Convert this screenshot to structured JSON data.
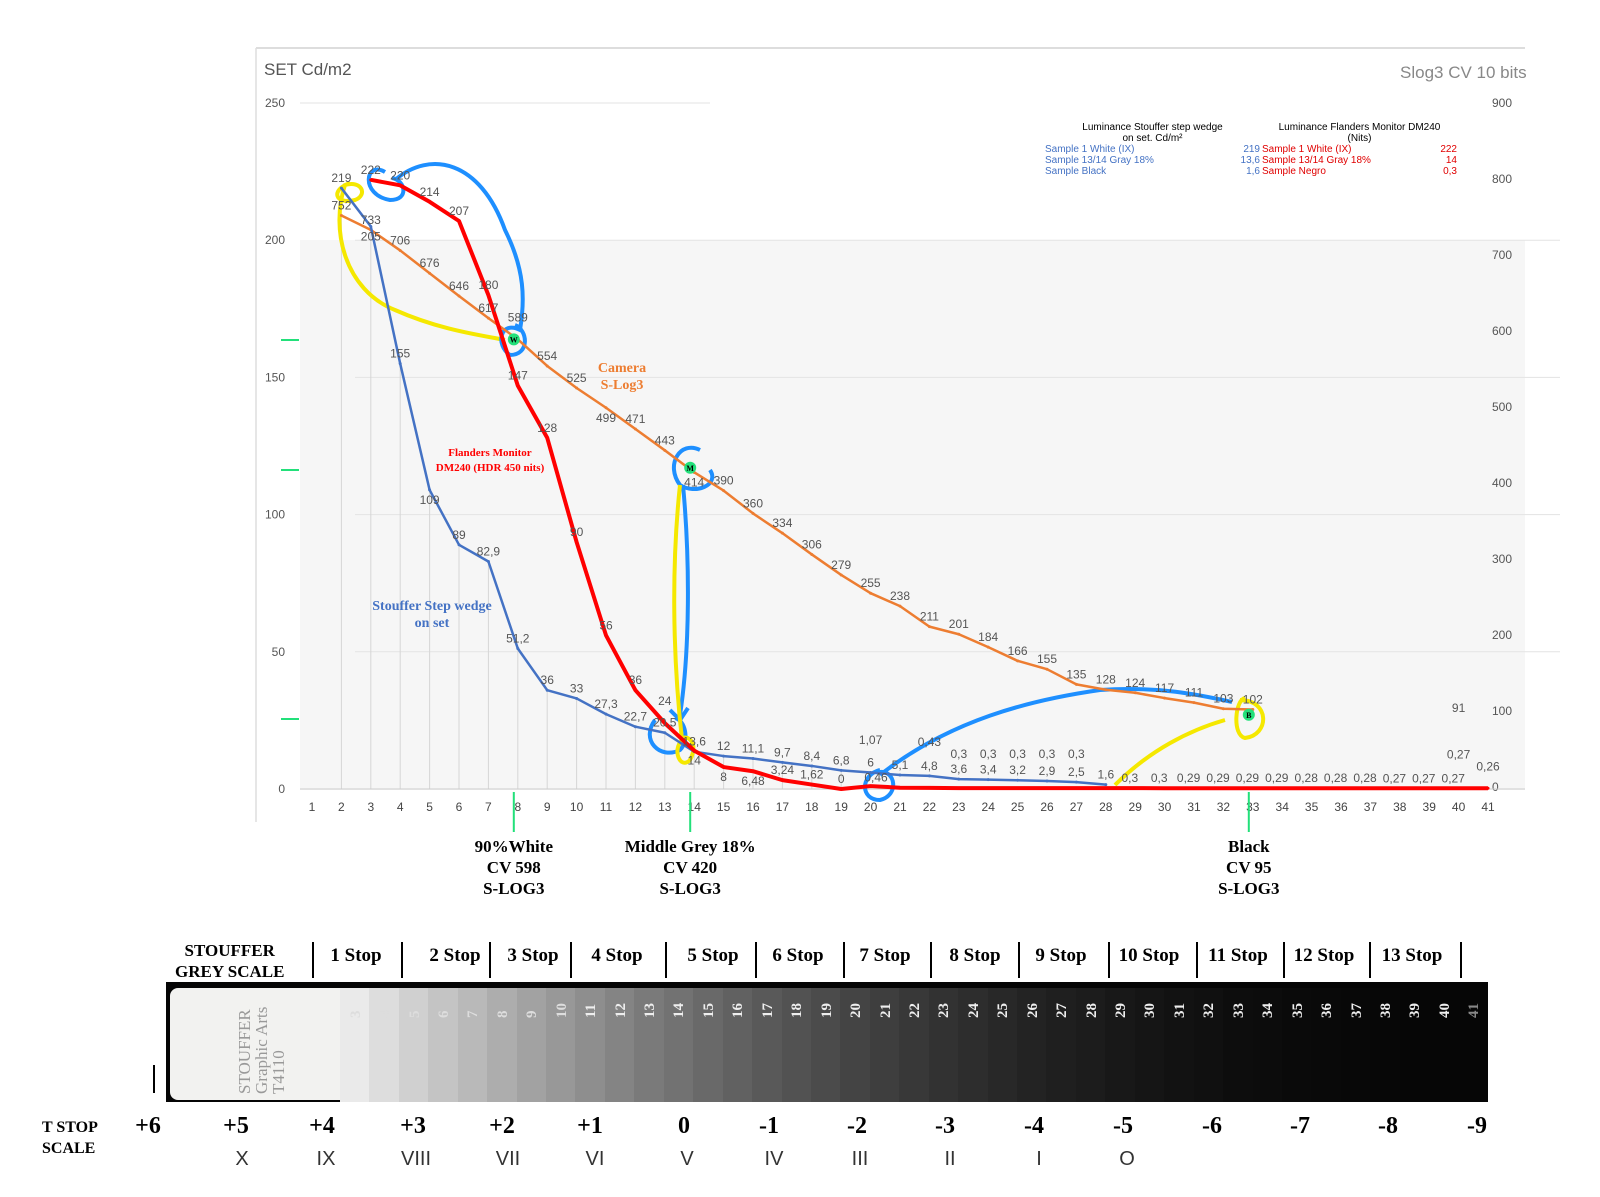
{
  "chart_data": {
    "type": "line",
    "left_axis_title": "SET Cd/m2",
    "right_axis_title": "Slog3 CV 10 bits",
    "left_ylim": [
      0,
      250
    ],
    "left_ticks": [
      0,
      50,
      100,
      150,
      200,
      250
    ],
    "right_ylim": [
      0,
      900
    ],
    "right_ticks": [
      0,
      100,
      200,
      300,
      400,
      500,
      600,
      700,
      800,
      900
    ],
    "xlim": [
      1,
      41
    ],
    "x_ticks": [
      1,
      2,
      3,
      4,
      5,
      6,
      7,
      8,
      9,
      10,
      11,
      12,
      13,
      14,
      15,
      16,
      17,
      18,
      19,
      20,
      21,
      22,
      23,
      24,
      25,
      26,
      27,
      28,
      29,
      30,
      31,
      32,
      33,
      34,
      35,
      36,
      37,
      38,
      39,
      40,
      41
    ],
    "grid": "horizontal",
    "series": [
      {
        "name": "Stouffer Step wedge on set",
        "axis": "left",
        "color": "#4472c4",
        "x_start": 2,
        "values": [
          219,
          205,
          155,
          109,
          89,
          82.9,
          51.2,
          36,
          33,
          27.3,
          22.7,
          20.5,
          13.6,
          12,
          11.1,
          9.7,
          8.4,
          6.8,
          6,
          5.1,
          4.8,
          3.6,
          3.4,
          3.2,
          2.9,
          2.5,
          1.6
        ]
      },
      {
        "name": "Flanders Monitor DM240 (HDR 450 nits)",
        "axis": "left",
        "color": "#ff0000",
        "x_start": 3,
        "values": [
          222,
          220,
          214,
          207,
          180,
          147,
          128,
          90,
          56,
          36,
          24,
          14,
          8,
          6.48,
          3.24,
          1.62,
          0,
          1.07,
          0.46,
          0.43,
          0.3,
          0.3,
          0.3,
          0.3,
          0.3,
          0.3,
          0.3,
          0.29,
          0.29,
          0.29,
          0.29,
          0.28,
          0.28,
          0.28,
          0.27,
          0.27,
          0.27,
          0.27,
          0.26
        ]
      },
      {
        "name": "Camera S-Log3",
        "axis": "right",
        "color": "#ed7d31",
        "x_start": 2,
        "values": [
          752,
          733,
          706,
          676,
          646,
          617,
          589,
          554,
          525,
          499,
          471,
          443,
          414,
          390,
          360,
          334,
          306,
          279,
          255,
          238,
          211,
          201,
          184,
          166,
          155,
          135,
          128,
          124,
          117,
          111,
          103,
          102
        ]
      }
    ],
    "extra_point": {
      "x": 40,
      "value": 91,
      "axis": "right"
    },
    "series_labels": {
      "camera": [
        "Camera",
        "S-Log3"
      ],
      "monitor": [
        "Flanders Monitor",
        "DM240 (HDR 450 nits)"
      ],
      "stouffer": [
        "Stouffer Step wedge",
        "on set"
      ]
    },
    "markers": [
      {
        "letter": "W",
        "x": 8,
        "value": 589,
        "axis": "right"
      },
      {
        "letter": "M",
        "x": 14,
        "value": 420,
        "axis": "right"
      },
      {
        "letter": "B",
        "x": 33,
        "value": 95,
        "axis": "right"
      }
    ],
    "marker_color": "#22e07a",
    "legend_blue": {
      "title": [
        "Luminance Stouffer step wedge",
        "on set. Cd/m²"
      ],
      "rows": [
        [
          "Sample 1 White (IX)",
          "219"
        ],
        [
          "Sample 13/14 Gray 18%",
          "13,6"
        ],
        [
          "Sample Black",
          "1,6"
        ]
      ]
    },
    "legend_red": {
      "title": [
        "Luminance Flanders Monitor DM240",
        "(Nits)"
      ],
      "rows": [
        [
          "Sample 1 White (IX)",
          "222"
        ],
        [
          "Sample 13/14 Gray 18%",
          "14"
        ],
        [
          "Sample Negro",
          "0,3"
        ]
      ]
    },
    "annotations": [
      {
        "x": 8,
        "lines": [
          "90%White",
          "CV 598",
          "S-LOG3"
        ]
      },
      {
        "x": 14,
        "lines": [
          "Middle Grey 18%",
          "CV 420",
          "S-LOG3"
        ]
      },
      {
        "x": 33,
        "lines": [
          "Black",
          "CV 95",
          "S-LOG3"
        ]
      }
    ]
  },
  "grey_scale": {
    "title": [
      "STOUFFER",
      "GREY SCALE"
    ],
    "logo_text": [
      "STOUFFER",
      "Graphic Arts",
      "T4110"
    ],
    "stops": [
      "1 Stop",
      "2 Stop",
      "3 Stop",
      "4 Stop",
      "5 Stop",
      "6 Stop",
      "7 Stop",
      "8 Stop",
      "9 Stop",
      "10 Stop",
      "11 Stop",
      "12 Stop",
      "13 Stop"
    ],
    "step_numbers": [
      "3",
      "4",
      "5",
      "6",
      "7",
      "8",
      "9",
      "10",
      "11",
      "12",
      "13",
      "14",
      "15",
      "16",
      "17",
      "18",
      "19",
      "20",
      "21",
      "22",
      "23",
      "24",
      "25",
      "26",
      "27",
      "28",
      "29",
      "30",
      "31",
      "32",
      "33",
      "34",
      "35",
      "36",
      "37",
      "38",
      "39",
      "40",
      "41"
    ],
    "tstop_title": [
      "T STOP",
      "SCALE"
    ],
    "tstops": [
      "+6",
      "+5",
      "+4",
      "+3",
      "+2",
      "+1",
      "0",
      "-1",
      "-2",
      "-3",
      "-4",
      "-5",
      "-6",
      "-7",
      "-8",
      "-9"
    ],
    "zones": [
      "X",
      "IX",
      "VIII",
      "VII",
      "VI",
      "V",
      "IV",
      "III",
      "II",
      "I",
      "O"
    ]
  }
}
